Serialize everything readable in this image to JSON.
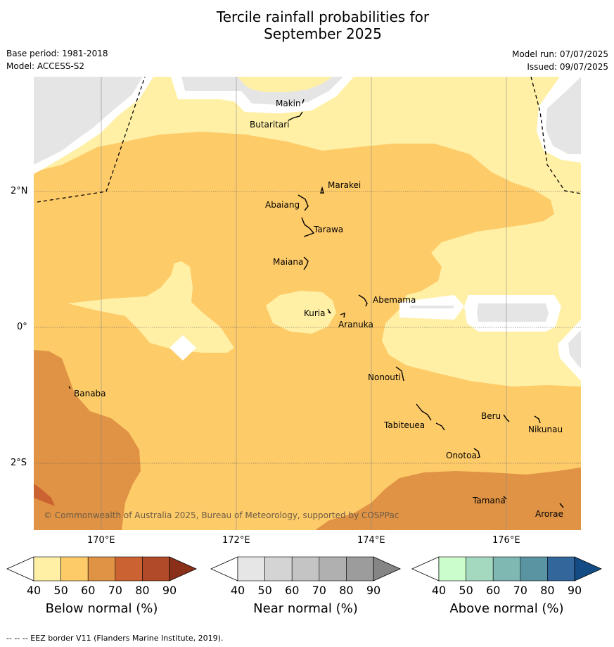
{
  "title_line1": "Tercile rainfall probabilities for",
  "title_line2": "September 2025",
  "base_period": "Base period: 1981-2018",
  "model": "Model: ACCESS-S2",
  "model_run": "Model run: 07/07/2025",
  "issued": "Issued: 09/07/2025",
  "lat_labels": [
    "2°N",
    "0°",
    "2°S"
  ],
  "lon_labels": [
    "170°E",
    "172°E",
    "174°E",
    "176°E"
  ],
  "places": {
    "makin": "Makin",
    "butaritari": "Butaritari",
    "marakei": "Marakei",
    "abaiang": "Abaiang",
    "tarawa": "Tarawa",
    "maiana": "Maiana",
    "abemama": "Abemama",
    "kuria": "Kuria",
    "aranuka": "Aranuka",
    "banaba": "Banaba",
    "nonouti": "Nonouti",
    "beru": "Beru",
    "nikunau": "Nikunau",
    "tabiteuea": "Tabiteuea",
    "onotoa": "Onotoa",
    "tamana": "Tamana",
    "arorae": "Arorae"
  },
  "copyright": "© Commonwealth of Australia 2025, Bureau of Meteorology, supported by COSPPac",
  "colorbars": [
    {
      "title": "Below normal (%)",
      "ticks": [
        "40",
        "50",
        "60",
        "70",
        "80",
        "90"
      ],
      "colors": [
        "#fff0a6",
        "#fecb69",
        "#e09345",
        "#cb6232",
        "#b04a28",
        "#8a3018"
      ]
    },
    {
      "title": "Near normal (%)",
      "ticks": [
        "40",
        "50",
        "60",
        "70",
        "80",
        "90"
      ],
      "colors": [
        "#e6e6e6",
        "#d4d4d4",
        "#c4c4c4",
        "#b0b0b0",
        "#9c9c9c",
        "#858585"
      ]
    },
    {
      "title": "Above normal (%)",
      "ticks": [
        "40",
        "50",
        "60",
        "70",
        "80",
        "90"
      ],
      "colors": [
        "#cbfccc",
        "#a5d9bf",
        "#7fb7b3",
        "#5a93a2",
        "#33669b",
        "#134b85"
      ]
    }
  ],
  "footnote": "--  --  -- EEZ border V11 (Flanders Marine Institute, 2019).",
  "colors": {
    "below_40_50": "#fff0a6",
    "below_50_60": "#fecb69",
    "below_60_70": "#e09345",
    "below_70_80": "#cb6232",
    "near_40_50": "#e6e6e6"
  }
}
